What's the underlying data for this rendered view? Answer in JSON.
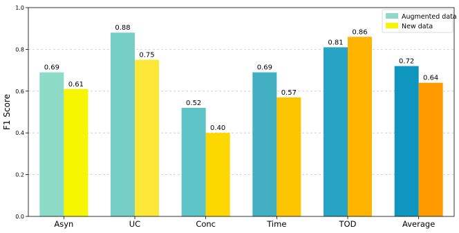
{
  "chart_data": {
    "type": "bar",
    "ylabel": "F1 Score",
    "ylim": [
      0,
      1.0
    ],
    "yticks": [
      "0.0",
      "0.2",
      "0.4",
      "0.6",
      "0.8",
      "1.0"
    ],
    "grid": "horizontal dashed",
    "legend_placement": "top-right",
    "categories": [
      "Asyn",
      "UC",
      "Conc",
      "Time",
      "TOD",
      "Average"
    ],
    "series": [
      {
        "name": "Augmented data",
        "values": [
          0.69,
          0.88,
          0.52,
          0.69,
          0.81,
          0.72
        ],
        "labels": [
          "0.69",
          "0.88",
          "0.52",
          "0.69",
          "0.81",
          "0.72"
        ],
        "colors": [
          "#8ddbc6",
          "#76cfc4",
          "#5dc3c7",
          "#42b0c2",
          "#27a4c3",
          "#0f96bf"
        ],
        "legend_color": "#8ddbc6"
      },
      {
        "name": "New data",
        "values": [
          0.61,
          0.75,
          0.4,
          0.57,
          0.86,
          0.64
        ],
        "labels": [
          "0.61",
          "0.75",
          "0.40",
          "0.57",
          "0.86",
          "0.64"
        ],
        "colors": [
          "#f6f600",
          "#fde83a",
          "#fdd800",
          "#fdc400",
          "#ffb400",
          "#ff9a00"
        ],
        "legend_color": "#f6f600"
      }
    ]
  }
}
